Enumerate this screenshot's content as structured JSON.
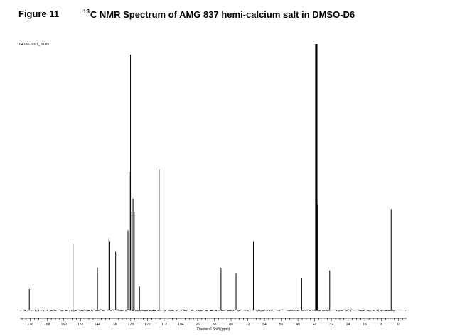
{
  "header": {
    "figure_label": "Figure 11",
    "title_sup": "13",
    "title_rest": "C NMR Spectrum of AMG 837 hemi-calcium salt in DMSO-D6",
    "file_id": "64336-39-1_20.dx"
  },
  "chart_data": {
    "type": "line",
    "title": "13C NMR Spectrum of AMG 837 hemi-calcium salt in DMSO-D6",
    "xlabel": "Chemical Shift (ppm)",
    "ylabel": "",
    "x_reversed": true,
    "xlim": [
      181,
      -4
    ],
    "ylim": [
      0,
      1
    ],
    "grid": false,
    "x_ticks": [
      176,
      168,
      160,
      152,
      144,
      136,
      128,
      120,
      112,
      104,
      96,
      88,
      80,
      72,
      64,
      56,
      48,
      40,
      32,
      24,
      16,
      8,
      0
    ],
    "peaks": [
      {
        "ppm": 176.5,
        "height": 0.08
      },
      {
        "ppm": 155.6,
        "height": 0.25
      },
      {
        "ppm": 143.9,
        "height": 0.16
      },
      {
        "ppm": 138.4,
        "height": 0.27
      },
      {
        "ppm": 138.0,
        "height": 0.26
      },
      {
        "ppm": 135.2,
        "height": 0.22
      },
      {
        "ppm": 129.3,
        "height": 0.3
      },
      {
        "ppm": 128.7,
        "height": 0.52
      },
      {
        "ppm": 128.1,
        "height": 0.96
      },
      {
        "ppm": 127.5,
        "height": 0.37
      },
      {
        "ppm": 126.9,
        "height": 0.42
      },
      {
        "ppm": 126.3,
        "height": 0.37
      },
      {
        "ppm": 123.8,
        "height": 0.09
      },
      {
        "ppm": 114.4,
        "height": 0.53
      },
      {
        "ppm": 84.8,
        "height": 0.16
      },
      {
        "ppm": 77.6,
        "height": 0.14
      },
      {
        "ppm": 69.3,
        "height": 0.26
      },
      {
        "ppm": 46.2,
        "height": 0.12
      },
      {
        "ppm": 39.5,
        "height": 1.0
      },
      {
        "ppm": 39.3,
        "height": 1.0
      },
      {
        "ppm": 39.1,
        "height": 1.0
      },
      {
        "ppm": 38.9,
        "height": 1.0
      },
      {
        "ppm": 38.7,
        "height": 0.4
      },
      {
        "ppm": 32.8,
        "height": 0.15
      },
      {
        "ppm": 3.4,
        "height": 0.38
      }
    ]
  }
}
